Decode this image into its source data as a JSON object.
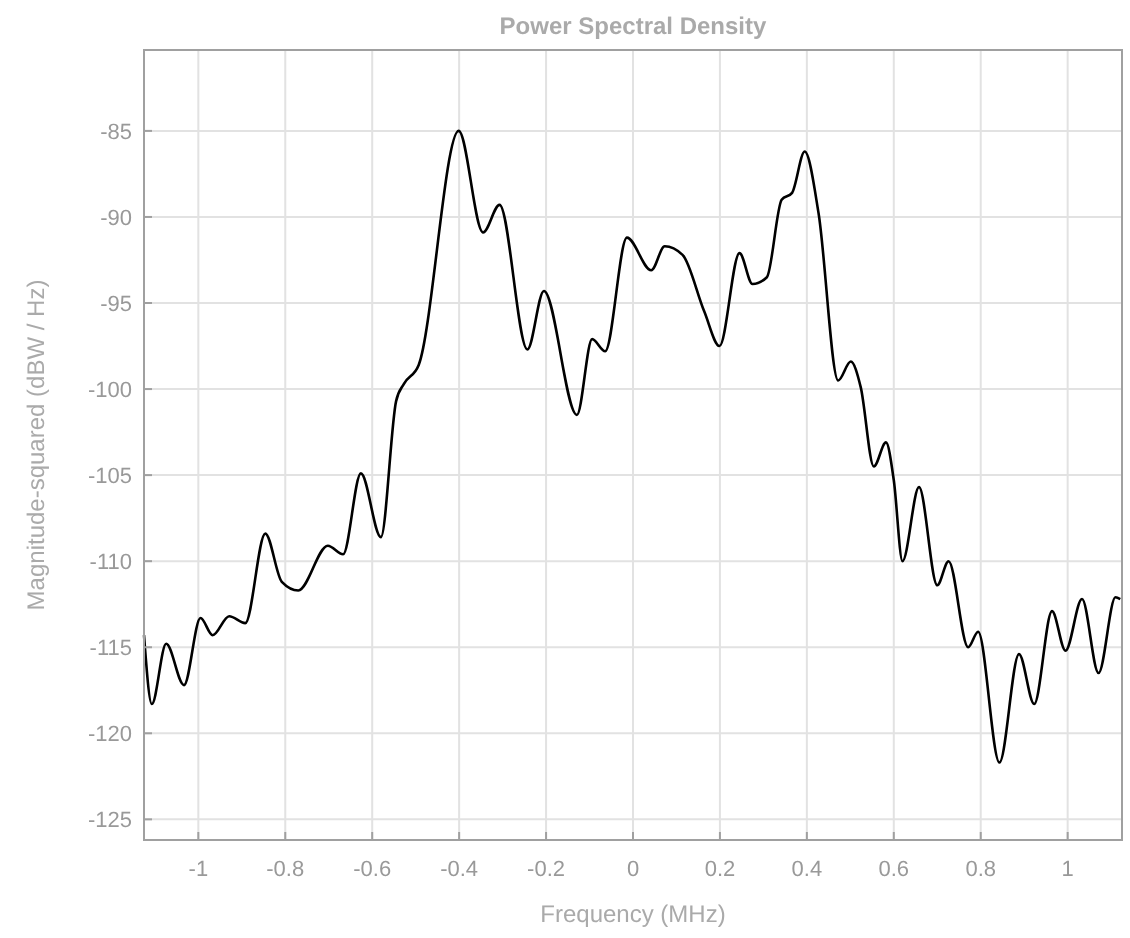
{
  "chart_data": {
    "type": "line",
    "title": "Power Spectral Density",
    "xlabel": "Frequency (MHz)",
    "ylabel": "Magnitude-squared (dBW / Hz)",
    "x": [
      -1.125,
      -1.107,
      -1.074,
      -1.033,
      -0.995,
      -0.967,
      -0.929,
      -0.892,
      -0.846,
      -0.808,
      -0.77,
      -0.702,
      -0.667,
      -0.626,
      -0.58,
      -0.545,
      -0.527,
      -0.493,
      -0.401,
      -0.345,
      -0.307,
      -0.243,
      -0.205,
      -0.129,
      -0.094,
      -0.064,
      -0.014,
      0.042,
      0.073,
      0.114,
      0.164,
      0.199,
      0.245,
      0.275,
      0.308,
      0.342,
      0.366,
      0.395,
      0.427,
      0.472,
      0.501,
      0.524,
      0.554,
      0.582,
      0.6,
      0.62,
      0.658,
      0.7,
      0.726,
      0.771,
      0.794,
      0.843,
      0.888,
      0.923,
      0.964,
      0.995,
      1.033,
      1.071,
      1.11,
      1.121
    ],
    "series": [
      {
        "color": "#000000",
        "values": [
          -114.3,
          -118.3,
          -114.8,
          -117.2,
          -113.3,
          -114.3,
          -113.2,
          -113.6,
          -108.4,
          -111.2,
          -111.7,
          -109.1,
          -109.6,
          -104.9,
          -108.6,
          -100.7,
          -99.7,
          -98.6,
          -85.0,
          -90.9,
          -89.3,
          -97.7,
          -94.3,
          -101.5,
          -97.1,
          -97.8,
          -91.2,
          -93.1,
          -91.7,
          -92.2,
          -95.5,
          -97.5,
          -92.1,
          -93.9,
          -93.5,
          -89.0,
          -88.6,
          -86.2,
          -89.8,
          -99.5,
          -98.4,
          -99.9,
          -104.5,
          -103.1,
          -105.3,
          -110.0,
          -105.7,
          -111.4,
          -110.0,
          -115.0,
          -114.1,
          -121.7,
          -115.4,
          -118.3,
          -112.9,
          -115.2,
          -112.2,
          -116.5,
          -112.1,
          -112.2
        ]
      }
    ],
    "xlim": [
      -1.125,
      1.125
    ],
    "xticks": [
      -1,
      -0.8,
      -0.6,
      -0.4,
      -0.2,
      0,
      0.2,
      0.4,
      0.6,
      0.8,
      1
    ],
    "ylim": [
      -126.2,
      -80.3
    ],
    "yticks": [
      -125,
      -120,
      -115,
      -110,
      -105,
      -100,
      -95,
      -90,
      -85
    ],
    "grid": true,
    "marker": "none",
    "line_style": "solid"
  }
}
